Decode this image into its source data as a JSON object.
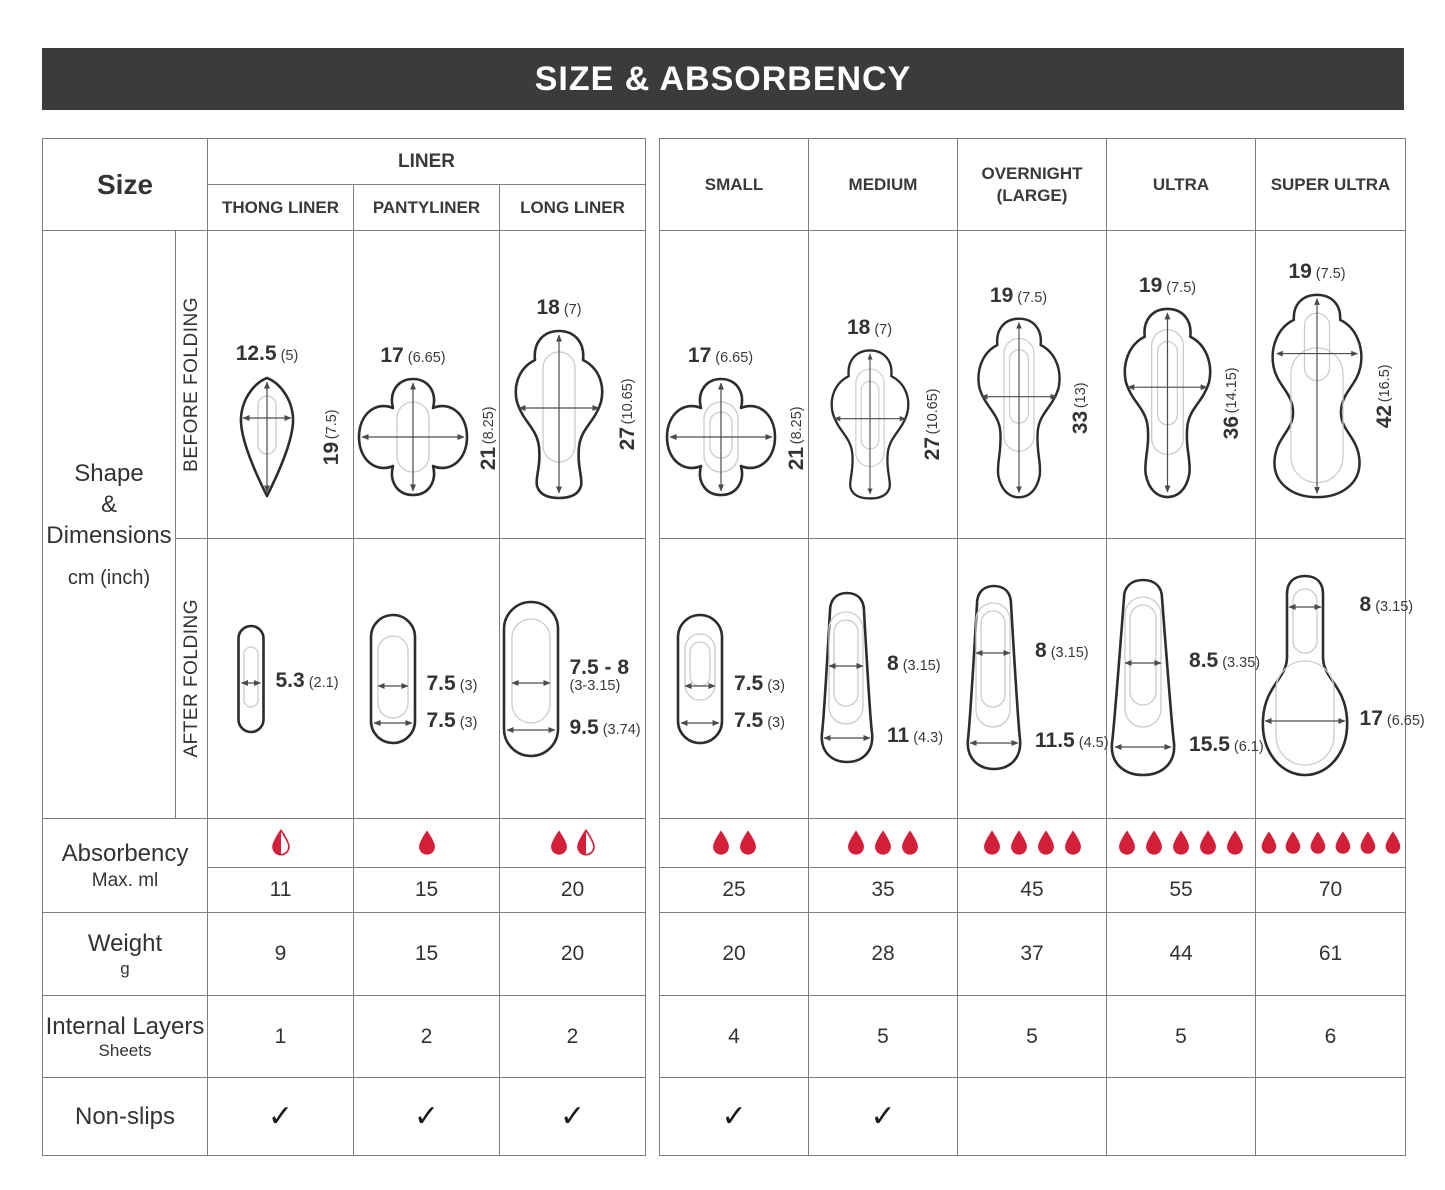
{
  "title": "SIZE & ABSORBENCY",
  "left_header": {
    "size": "Size",
    "group": "LINER"
  },
  "row_labels": {
    "shape_line1": "Shape",
    "shape_amp": "&",
    "shape_line2": "Dimensions",
    "shape_unit": "cm (inch)",
    "before": "BEFORE FOLDING",
    "after": "AFTER FOLDING",
    "absorbency": "Absorbency",
    "absorbency_unit": "Max. ml",
    "weight": "Weight",
    "weight_unit": "g",
    "layers": "Internal Layers",
    "layers_unit": "Sheets",
    "nonslips": "Non-slips"
  },
  "drop_color": "#d41f39",
  "columns": [
    {
      "label": "THONG LINER",
      "label2": "",
      "before": {
        "w": "12.5",
        "w_in": "(5)",
        "h": "19",
        "h_in": "(7.5)"
      },
      "after": [
        {
          "v": "5.3",
          "in": "(2.1)"
        }
      ],
      "drops_full": 0,
      "drops_half": 1,
      "max_ml": "11",
      "weight": "9",
      "layers": "1",
      "nonslip": "✓"
    },
    {
      "label": "PANTYLINER",
      "label2": "",
      "before": {
        "w": "17",
        "w_in": "(6.65)",
        "h": "21",
        "h_in": "(8.25)"
      },
      "after": [
        {
          "v": "7.5",
          "in": "(3)"
        },
        {
          "v": "7.5",
          "in": "(3)"
        }
      ],
      "drops_full": 1,
      "drops_half": 0,
      "max_ml": "15",
      "weight": "15",
      "layers": "2",
      "nonslip": "✓"
    },
    {
      "label": "LONG LINER",
      "label2": "",
      "before": {
        "w": "18",
        "w_in": "(7)",
        "h": "27",
        "h_in": "(10.65)"
      },
      "after": [
        {
          "v": "7.5 - 8",
          "in": "(3-3.15)"
        },
        {
          "v": "9.5",
          "in": "(3.74)"
        }
      ],
      "drops_full": 1,
      "drops_half": 1,
      "max_ml": "20",
      "weight": "20",
      "layers": "2",
      "nonslip": "✓"
    },
    {
      "label": "SMALL",
      "label2": "",
      "before": {
        "w": "17",
        "w_in": "(6.65)",
        "h": "21",
        "h_in": "(8.25)"
      },
      "after": [
        {
          "v": "7.5",
          "in": "(3)"
        },
        {
          "v": "7.5",
          "in": "(3)"
        }
      ],
      "drops_full": 2,
      "drops_half": 0,
      "max_ml": "25",
      "weight": "20",
      "layers": "4",
      "nonslip": "✓"
    },
    {
      "label": "MEDIUM",
      "label2": "",
      "before": {
        "w": "18",
        "w_in": "(7)",
        "h": "27",
        "h_in": "(10.65)"
      },
      "after": [
        {
          "v": "8",
          "in": "(3.15)"
        },
        {
          "v": "11",
          "in": "(4.3)"
        }
      ],
      "drops_full": 3,
      "drops_half": 0,
      "max_ml": "35",
      "weight": "28",
      "layers": "5",
      "nonslip": "✓"
    },
    {
      "label": "OVERNIGHT",
      "label2": "(LARGE)",
      "before": {
        "w": "19",
        "w_in": "(7.5)",
        "h": "33",
        "h_in": "(13)"
      },
      "after": [
        {
          "v": "8",
          "in": "(3.15)"
        },
        {
          "v": "11.5",
          "in": "(4.5)"
        }
      ],
      "drops_full": 4,
      "drops_half": 0,
      "max_ml": "45",
      "weight": "37",
      "layers": "5",
      "nonslip": ""
    },
    {
      "label": "ULTRA",
      "label2": "",
      "before": {
        "w": "19",
        "w_in": "(7.5)",
        "h": "36",
        "h_in": "(14.15)"
      },
      "after": [
        {
          "v": "8.5",
          "in": "(3.35)"
        },
        {
          "v": "15.5",
          "in": "(6.1)"
        }
      ],
      "drops_full": 5,
      "drops_half": 0,
      "max_ml": "55",
      "weight": "44",
      "layers": "5",
      "nonslip": ""
    },
    {
      "label": "SUPER ULTRA",
      "label2": "",
      "before": {
        "w": "19",
        "w_in": "(7.5)",
        "h": "42",
        "h_in": "(16.5)"
      },
      "after": [
        {
          "v": "8",
          "in": "(3.15)"
        },
        {
          "v": "17",
          "in": "(6.65)"
        }
      ],
      "drops_full": 6,
      "drops_half": 0,
      "max_ml": "70",
      "weight": "61",
      "layers": "6",
      "nonslip": ""
    }
  ],
  "chart_data": {
    "type": "table",
    "title": "SIZE & ABSORBENCY",
    "columns": [
      "THONG LINER",
      "PANTYLINER",
      "LONG LINER",
      "SMALL",
      "MEDIUM",
      "OVERNIGHT (LARGE)",
      "ULTRA",
      "SUPER ULTRA"
    ],
    "rows": {
      "before_folding_width_cm_inch": [
        [
          12.5,
          5
        ],
        [
          17,
          6.65
        ],
        [
          18,
          7
        ],
        [
          17,
          6.65
        ],
        [
          18,
          7
        ],
        [
          19,
          7.5
        ],
        [
          19,
          7.5
        ],
        [
          19,
          7.5
        ]
      ],
      "before_folding_length_cm_inch": [
        [
          19,
          7.5
        ],
        [
          21,
          8.25
        ],
        [
          27,
          10.65
        ],
        [
          21,
          8.25
        ],
        [
          27,
          10.65
        ],
        [
          33,
          13
        ],
        [
          36,
          14.15
        ],
        [
          42,
          16.5
        ]
      ],
      "after_folding_cm": [
        [
          "5.3"
        ],
        [
          "7.5",
          "7.5"
        ],
        [
          "7.5-8",
          "9.5"
        ],
        [
          "7.5",
          "7.5"
        ],
        [
          "8",
          "11"
        ],
        [
          "8",
          "11.5"
        ],
        [
          "8.5",
          "15.5"
        ],
        [
          "8",
          "17"
        ]
      ],
      "absorbency_drops": [
        0.5,
        1,
        1.5,
        2,
        3,
        4,
        5,
        6
      ],
      "absorbency_max_ml": [
        11,
        15,
        20,
        25,
        35,
        45,
        55,
        70
      ],
      "weight_g": [
        9,
        15,
        20,
        20,
        28,
        37,
        44,
        61
      ],
      "internal_layers_sheets": [
        1,
        2,
        2,
        4,
        5,
        5,
        5,
        6
      ],
      "non_slips": [
        true,
        true,
        true,
        true,
        true,
        false,
        false,
        false
      ]
    }
  }
}
